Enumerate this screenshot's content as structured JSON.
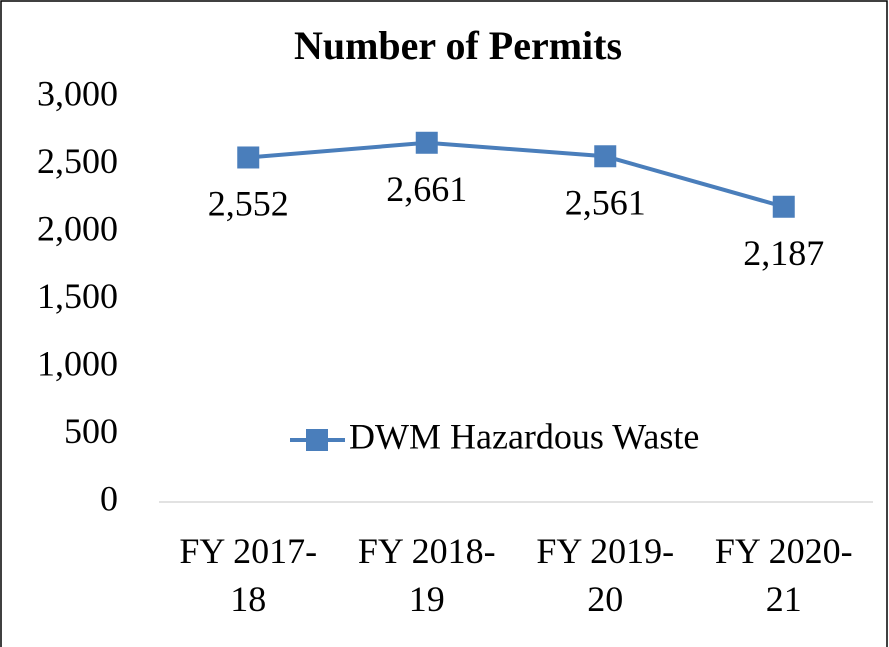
{
  "chart_data": {
    "type": "line",
    "title": "Number of Permits",
    "categories": [
      "FY 2017-18",
      "FY 2018-19",
      "FY 2019-20",
      "FY 2020-21"
    ],
    "series": [
      {
        "name": "DWM Hazardous Waste",
        "color": "#4a7ebb",
        "values": [
          2552,
          2661,
          2561,
          2187
        ],
        "value_labels": [
          "2,552",
          "2,661",
          "2,561",
          "2,187"
        ]
      }
    ],
    "ylim": [
      0,
      3000
    ],
    "yticks": [
      0,
      500,
      {
        "value": 1000,
        "label": "1,000"
      },
      {
        "value": 1500,
        "label": "1,500"
      },
      {
        "value": 2000,
        "label": "2,000"
      },
      {
        "value": 2500,
        "label": "2,500"
      },
      {
        "value": 3000,
        "label": "3,000"
      }
    ],
    "grid": false,
    "legend": "center"
  }
}
